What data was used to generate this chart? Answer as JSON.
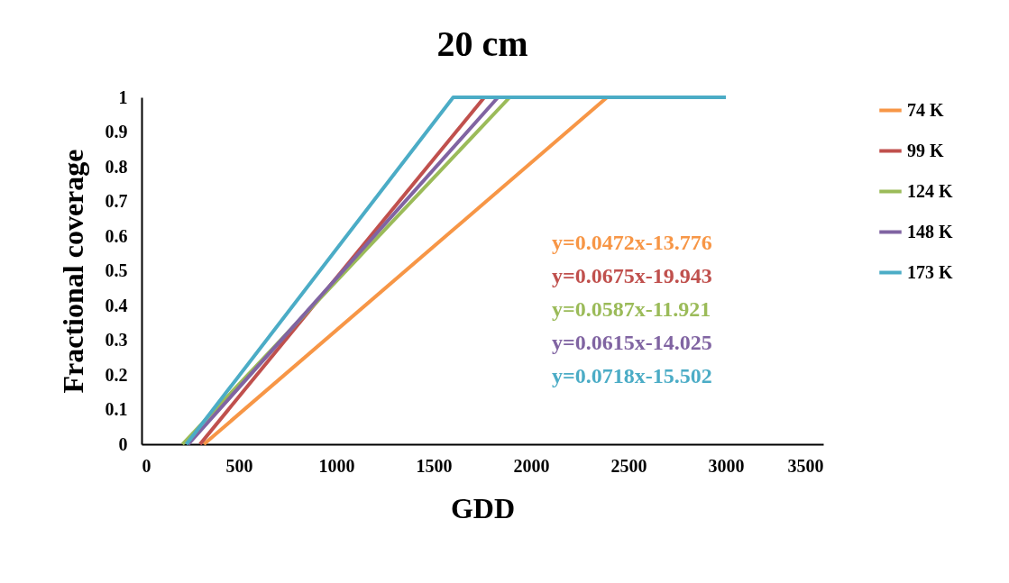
{
  "chart_data": {
    "type": "line",
    "title": "20 cm",
    "xlabel": "GDD",
    "ylabel": "Fractional coverage",
    "xlim": [
      0,
      3500
    ],
    "xticks": [
      0,
      500,
      1000,
      1500,
      2000,
      2500,
      3000,
      3500
    ],
    "ylim": [
      0,
      1
    ],
    "yticks": [
      0,
      0.1,
      0.2,
      0.3,
      0.4,
      0.5,
      0.6,
      0.7,
      0.8,
      0.9,
      1
    ],
    "grid": false,
    "legend": "right",
    "marker": "none",
    "line_style": "solid",
    "series": [
      {
        "name": "74 K",
        "color": "#f79646",
        "x": [
          320,
          2390
        ],
        "values": [
          0,
          1
        ]
      },
      {
        "name": "99 K",
        "color": "#c0504d",
        "x": [
          300,
          1760
        ],
        "values": [
          0,
          1
        ]
      },
      {
        "name": "124 K",
        "color": "#9bbb59",
        "x": [
          210,
          1890
        ],
        "values": [
          0,
          1
        ]
      },
      {
        "name": "148 K",
        "color": "#8064a2",
        "x": [
          240,
          1830,
          3000
        ],
        "values": [
          0,
          1,
          1
        ]
      },
      {
        "name": "173 K",
        "color": "#4bacc6",
        "x": [
          230,
          1600,
          3000
        ],
        "values": [
          0,
          1,
          1
        ]
      }
    ],
    "annotations": [
      "y=0.0472x-13.776",
      "y=0.0675x-19.943",
      "y=0.0587x-11.921",
      "y=0.0615x-14.025",
      "y=0.0718x-15.502"
    ]
  }
}
